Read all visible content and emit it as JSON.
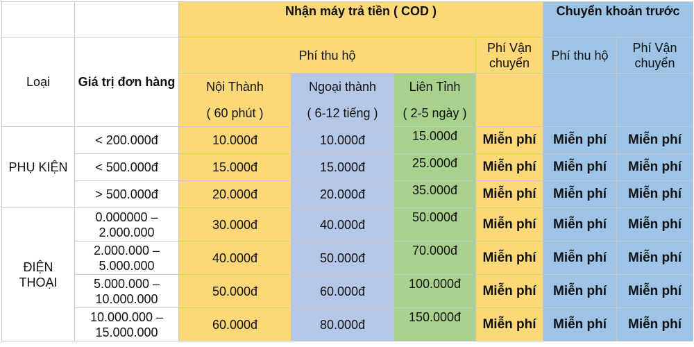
{
  "header": {
    "cod_title": "Nhận máy trả tiền ( COD )",
    "transfer_title": "Chuyển khoản trước",
    "type_label": "Loại",
    "order_value_label": "Giá trị đơn hàng",
    "collection_fee_label": "Phí thu hộ",
    "shipping_fee_label": "Phí Vận chuyển",
    "transfer_collection_fee_label": "Phí thu hộ",
    "transfer_shipping_fee_label": "Phí Vận chuyển",
    "inner_city": "Nội Thành",
    "inner_city_time": "( 60 phút )",
    "suburban": "Ngoại thành",
    "suburban_time": "( 6-12 tiếng )",
    "interprovince": "Liên Tỉnh",
    "interprovince_time": "( 2-5 ngày )"
  },
  "groups": [
    {
      "category": "PHỤ KIỆN",
      "rows": [
        {
          "value": "< 200.000đ",
          "inner": "10.000đ",
          "suburban": "10.000đ",
          "interprovince": "15.000đ",
          "cod_shipping": "Miễn phí",
          "transfer_collection": "Miễn phí",
          "transfer_shipping": "Miễn phí"
        },
        {
          "value": "< 500.000đ",
          "inner": "15.000đ",
          "suburban": "15.000đ",
          "interprovince": "25.000đ",
          "cod_shipping": "Miễn phí",
          "transfer_collection": "Miễn phí",
          "transfer_shipping": "Miễn phí"
        },
        {
          "value": "> 500.000đ",
          "inner": "20.000đ",
          "suburban": "20.000đ",
          "interprovince": "35.000đ",
          "cod_shipping": "Miễn phí",
          "transfer_collection": "Miễn phí",
          "transfer_shipping": "Miễn phí"
        }
      ]
    },
    {
      "category": "ĐIỆN THOẠI",
      "rows": [
        {
          "value": "0.000000 – 2.000.000",
          "inner": "30.000đ",
          "suburban": "40.000đ",
          "interprovince": "50.000đ",
          "cod_shipping": "Miễn phí",
          "transfer_collection": "Miễn phí",
          "transfer_shipping": "Miễn phí"
        },
        {
          "value": "2.000.000 – 5.000.000",
          "inner": "40.000đ",
          "suburban": "50.000đ",
          "interprovince": "70.000đ",
          "cod_shipping": "Miễn phí",
          "transfer_collection": "Miễn phí",
          "transfer_shipping": "Miễn phí"
        },
        {
          "value": "5.000.000 – 10.000.000",
          "inner": "50.000đ",
          "suburban": "60.000đ",
          "interprovince": "100.000đ",
          "cod_shipping": "Miễn phí",
          "transfer_collection": "Miễn phí",
          "transfer_shipping": "Miễn phí"
        },
        {
          "value": "10.000.000 – 15.000.000",
          "inner": "60.000đ",
          "suburban": "80.000đ",
          "interprovince": "150.000đ",
          "cod_shipping": "Miễn phí",
          "transfer_collection": "Miễn phí",
          "transfer_shipping": "Miễn phí"
        }
      ]
    }
  ]
}
